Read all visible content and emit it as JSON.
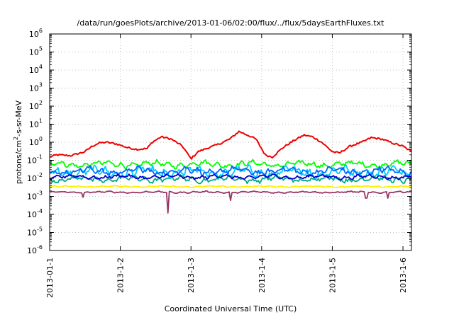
{
  "chart_data": {
    "type": "line",
    "title": "/data/run/goesPlots/archive/2013-01-06/02:00/flux/../flux/5daysEarthFluxes.txt",
    "xlabel": "Coordinated Universal Time (UTC)",
    "ylabel_parts": {
      "main": "protons/cm",
      "sup": "2",
      "rest": "-s-sr-MeV"
    },
    "yscale": "log",
    "ylim_exponents": [
      -6,
      6
    ],
    "y_ticks": [
      {
        "exp": "-6"
      },
      {
        "exp": "-5"
      },
      {
        "exp": "-4"
      },
      {
        "exp": "-3"
      },
      {
        "exp": "-2"
      },
      {
        "exp": "-1"
      },
      {
        "exp": "0"
      },
      {
        "exp": "1"
      },
      {
        "exp": "2"
      },
      {
        "exp": "3"
      },
      {
        "exp": "4"
      },
      {
        "exp": "5"
      },
      {
        "exp": "6"
      }
    ],
    "y_tick_base": "10",
    "x_range_days": [
      0,
      5.12
    ],
    "x_ticks": [
      {
        "label": "2013-01-1",
        "day": 0
      },
      {
        "label": "2013-1-2",
        "day": 1
      },
      {
        "label": "2013-1-3",
        "day": 2
      },
      {
        "label": "2013-1-4",
        "day": 3
      },
      {
        "label": "2013-1-5",
        "day": 4
      },
      {
        "label": "2013-1-6",
        "day": 5
      }
    ],
    "grid": true,
    "legend": "none",
    "series": [
      {
        "color": "#ee0000",
        "level": 0.4,
        "jitter": 0.1,
        "spikes": []
      },
      {
        "color": "#00ff00",
        "level": 0.06,
        "jitter": 0.18,
        "spikes": []
      },
      {
        "color": "#00ccff",
        "level": 0.022,
        "jitter": 0.3,
        "spikes": []
      },
      {
        "color": "#0066ff",
        "level": 0.025,
        "jitter": 0.22,
        "spikes": []
      },
      {
        "color": "#00aa88",
        "level": 0.009,
        "jitter": 0.18,
        "spikes": []
      },
      {
        "color": "#0000cc",
        "level": 0.012,
        "jitter": 0.12,
        "spikes": []
      },
      {
        "color": "#ffee00",
        "level": 0.0035,
        "jitter": 0.04,
        "spikes": []
      },
      {
        "color": "#993366",
        "level": 0.0017,
        "jitter": 0.05,
        "spikes": [
          {
            "day": 0.48,
            "value": 0.0009
          },
          {
            "day": 1.68,
            "value": 0.00012
          },
          {
            "day": 2.56,
            "value": 0.0006
          },
          {
            "day": 4.48,
            "value": 0.0008
          },
          {
            "day": 4.78,
            "value": 0.0008
          }
        ]
      }
    ],
    "red_profile": [
      {
        "day": 0.0,
        "value": 0.15
      },
      {
        "day": 0.1,
        "value": 0.2
      },
      {
        "day": 0.3,
        "value": 0.18
      },
      {
        "day": 0.5,
        "value": 0.3
      },
      {
        "day": 0.6,
        "value": 0.6
      },
      {
        "day": 0.7,
        "value": 0.9
      },
      {
        "day": 0.8,
        "value": 1.0
      },
      {
        "day": 0.95,
        "value": 0.8
      },
      {
        "day": 1.1,
        "value": 0.5
      },
      {
        "day": 1.25,
        "value": 0.4
      },
      {
        "day": 1.38,
        "value": 0.45
      },
      {
        "day": 1.45,
        "value": 1.0
      },
      {
        "day": 1.58,
        "value": 2.0
      },
      {
        "day": 1.72,
        "value": 1.5
      },
      {
        "day": 1.88,
        "value": 0.6
      },
      {
        "day": 2.0,
        "value": 0.12
      },
      {
        "day": 2.1,
        "value": 0.3
      },
      {
        "day": 2.25,
        "value": 0.5
      },
      {
        "day": 2.4,
        "value": 0.8
      },
      {
        "day": 2.55,
        "value": 1.5
      },
      {
        "day": 2.68,
        "value": 4.0
      },
      {
        "day": 2.8,
        "value": 2.5
      },
      {
        "day": 2.92,
        "value": 1.5
      },
      {
        "day": 3.05,
        "value": 0.2
      },
      {
        "day": 3.15,
        "value": 0.15
      },
      {
        "day": 3.3,
        "value": 0.5
      },
      {
        "day": 3.45,
        "value": 1.2
      },
      {
        "day": 3.6,
        "value": 2.5
      },
      {
        "day": 3.72,
        "value": 2.0
      },
      {
        "day": 3.85,
        "value": 1.0
      },
      {
        "day": 4.0,
        "value": 0.3
      },
      {
        "day": 4.1,
        "value": 0.25
      },
      {
        "day": 4.25,
        "value": 0.6
      },
      {
        "day": 4.42,
        "value": 1.0
      },
      {
        "day": 4.55,
        "value": 1.8
      },
      {
        "day": 4.7,
        "value": 1.5
      },
      {
        "day": 4.85,
        "value": 0.9
      },
      {
        "day": 5.0,
        "value": 0.6
      },
      {
        "day": 5.12,
        "value": 0.3
      }
    ]
  }
}
